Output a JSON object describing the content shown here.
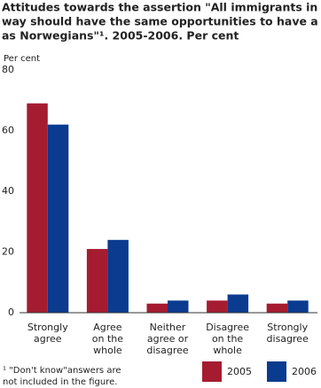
{
  "chart_data": {
    "type": "bar",
    "title": [
      "Attitudes towards the assertion \"All immigrants in Nor-",
      "way should have the same opportunities to have a job",
      "as Norwegians\"¹. 2005-2006. Per cent"
    ],
    "y_label": "Per cent",
    "categories": [
      [
        "Strongly",
        "agree"
      ],
      [
        "Agree",
        "on the",
        "whole"
      ],
      [
        "Neither",
        "agree or",
        "disagree"
      ],
      [
        "Disagree",
        "on the",
        "whole"
      ],
      [
        "Strongly",
        "disagree"
      ]
    ],
    "series": [
      {
        "name": "2005",
        "color": "#a51c30",
        "values": [
          69,
          21,
          3,
          4,
          3
        ]
      },
      {
        "name": "2006",
        "color": "#0b3b8f",
        "values": [
          62,
          24,
          4,
          6,
          4
        ]
      }
    ],
    "ylim": [
      0,
      80
    ],
    "yticks": [
      0,
      20,
      40,
      60,
      80
    ],
    "grid": false,
    "footnote": [
      "¹  \"Don't know\"answers are",
      "not included in the figure."
    ],
    "legend": "bottom-right"
  }
}
